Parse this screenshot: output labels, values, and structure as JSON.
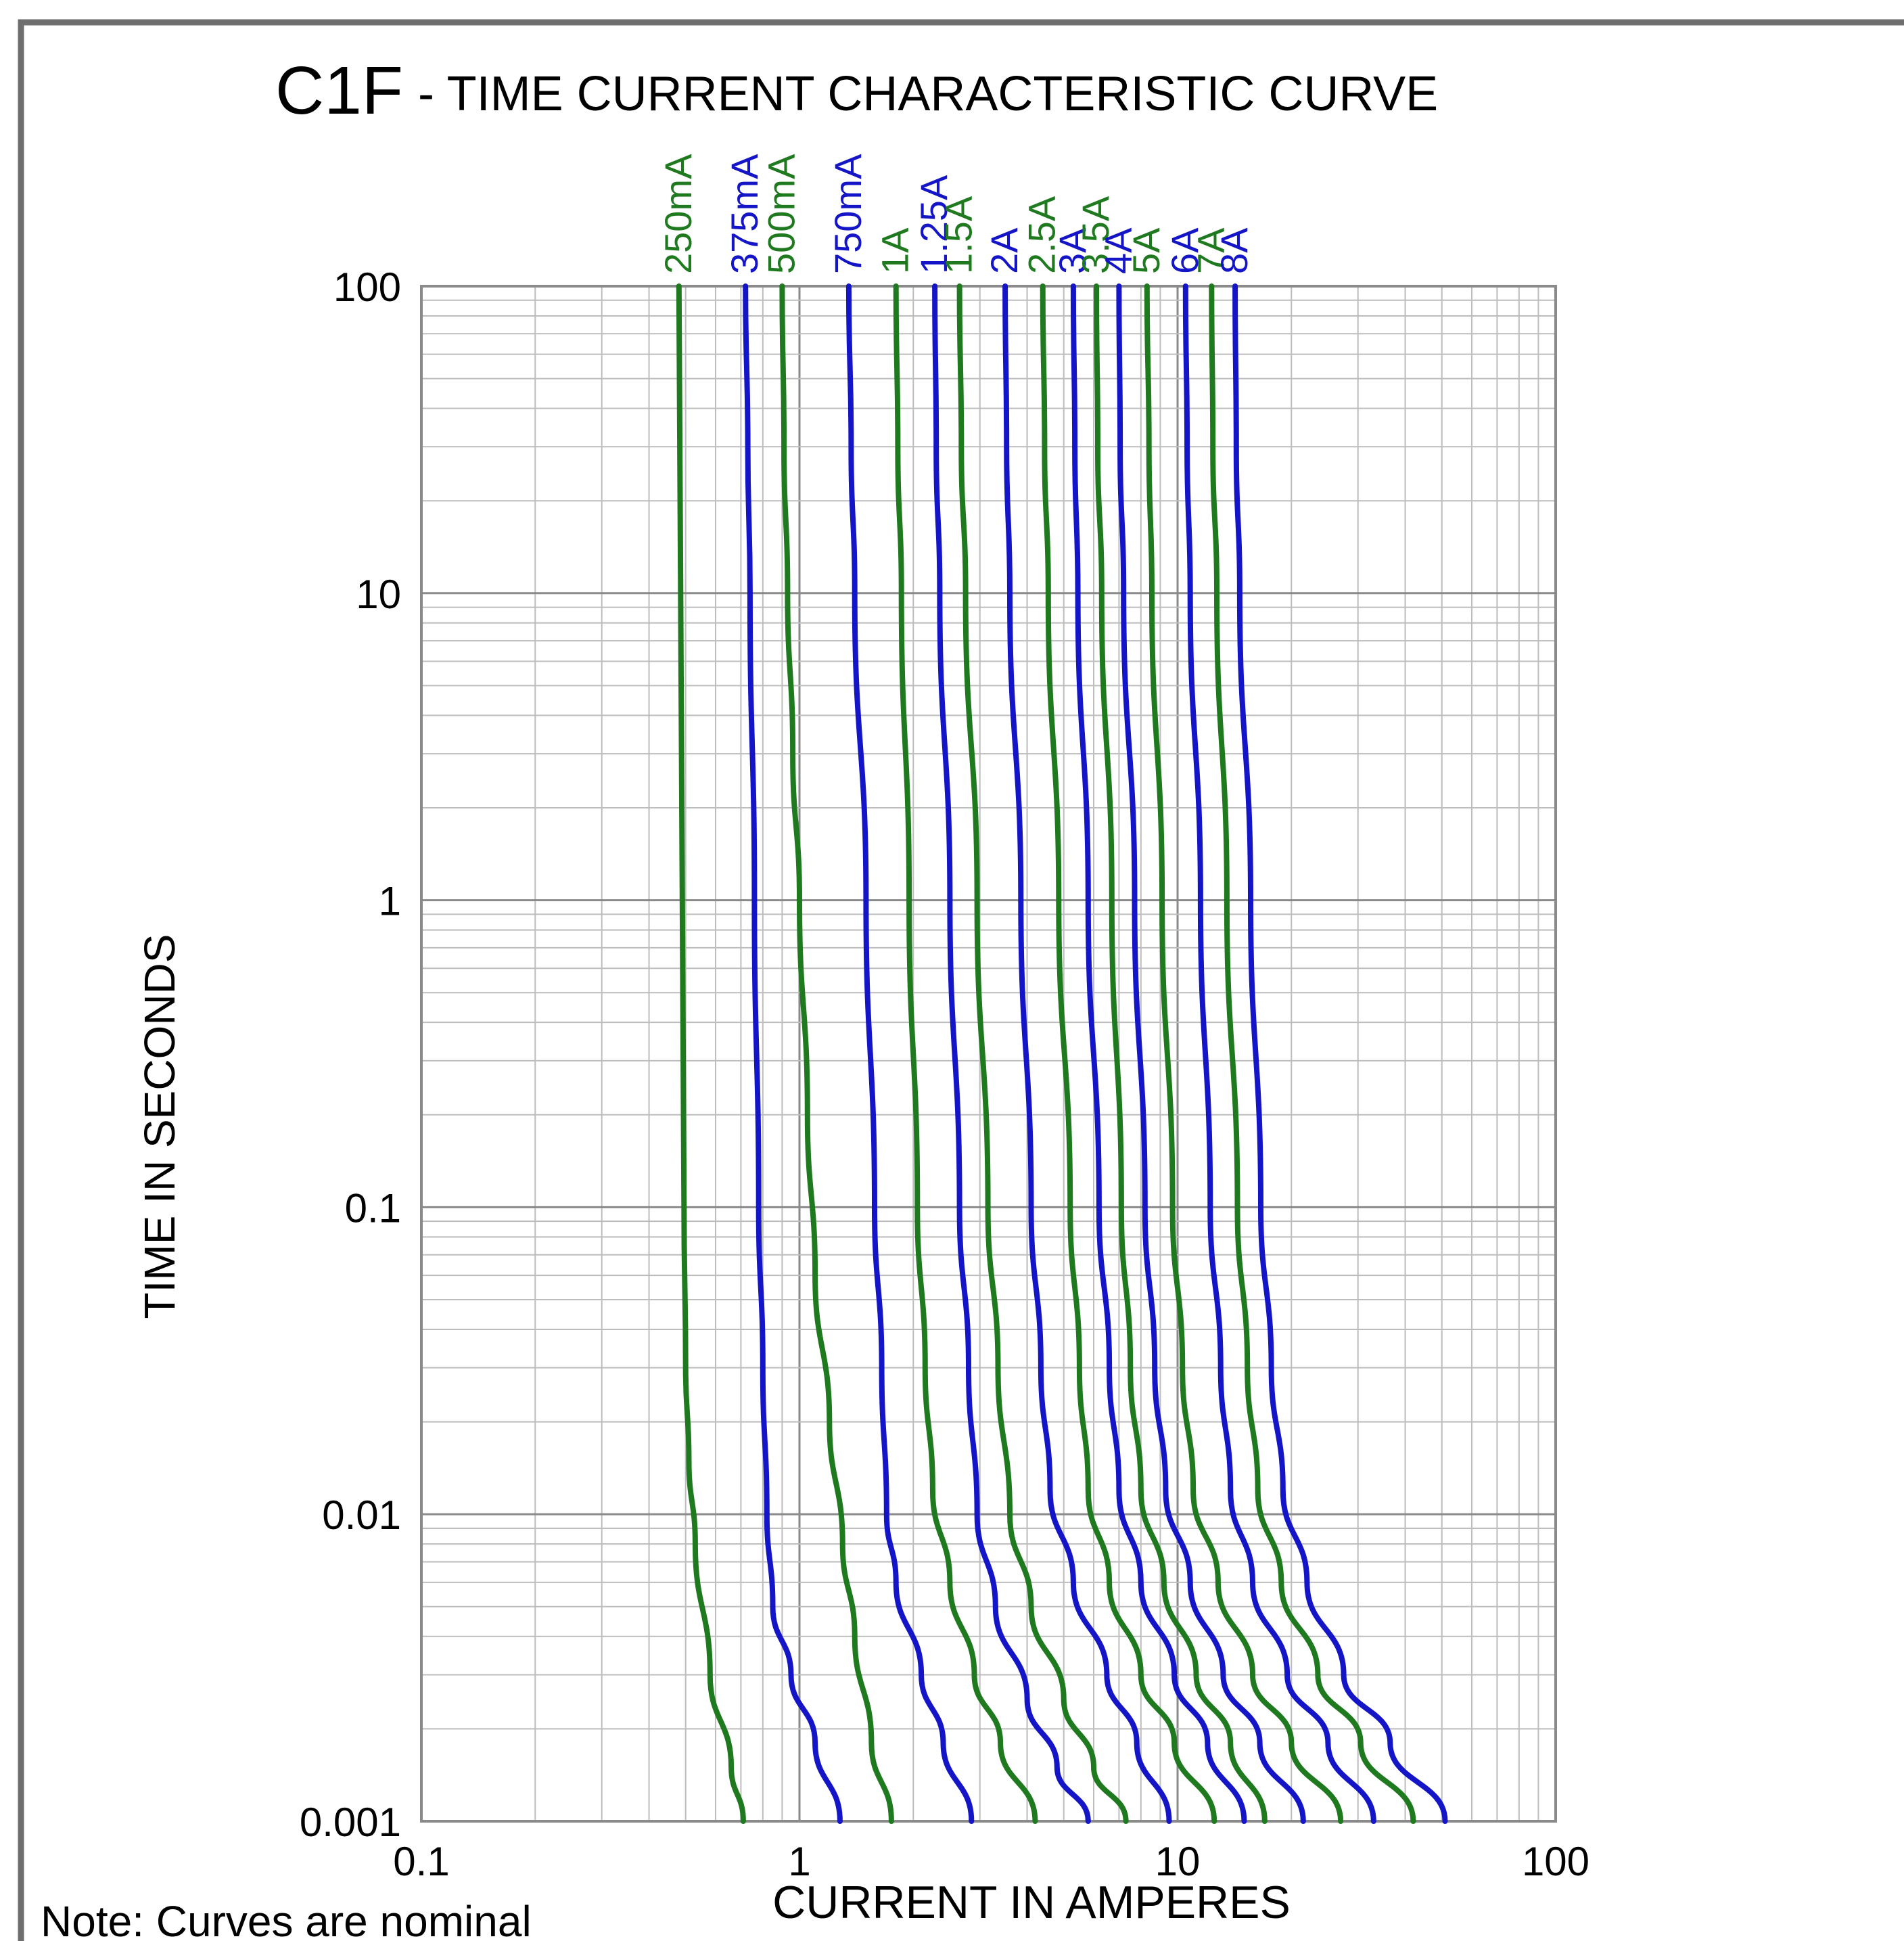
{
  "title": {
    "model": "C1F",
    "text": "- TIME CURRENT CHARACTERISTIC CURVE"
  },
  "note": "Note: Curves are nominal",
  "colors": {
    "green": "#1f7a1f",
    "blue": "#1515c8",
    "grid_minor": "#bdbdbd",
    "grid_major": "#8a8a8a",
    "frame": "#6e6e6e",
    "text": "#000000"
  },
  "chart_data": {
    "type": "line",
    "title": "C1F - TIME CURRENT CHARACTERISTIC CURVE",
    "xlabel": "CURRENT IN AMPERES",
    "ylabel": "TIME IN SECONDS",
    "x_scale": "log",
    "y_scale": "log",
    "xlim": [
      0.1,
      100
    ],
    "ylim": [
      0.001,
      100
    ],
    "x_ticks": [
      {
        "value": 0.1,
        "label": "0.1"
      },
      {
        "value": 1,
        "label": "1"
      },
      {
        "value": 10,
        "label": "10"
      },
      {
        "value": 100,
        "label": "100"
      }
    ],
    "y_ticks": [
      {
        "value": 100,
        "label": "100"
      },
      {
        "value": 10,
        "label": "10"
      },
      {
        "value": 1,
        "label": "1"
      },
      {
        "value": 0.1,
        "label": "0.1"
      },
      {
        "value": 0.01,
        "label": "0.01"
      },
      {
        "value": 0.001,
        "label": "0.001"
      }
    ],
    "grid": true,
    "legend": "rotated labels above each curve",
    "series": [
      {
        "name": "250mA",
        "color": "green",
        "points": [
          [
            0.48,
            100
          ],
          [
            0.485,
            10
          ],
          [
            0.49,
            1
          ],
          [
            0.495,
            0.1
          ],
          [
            0.5,
            0.03
          ],
          [
            0.51,
            0.015
          ],
          [
            0.53,
            0.008
          ],
          [
            0.58,
            0.003
          ],
          [
            0.66,
            0.0015
          ],
          [
            0.71,
            0.001
          ]
        ]
      },
      {
        "name": "375mA",
        "color": "blue",
        "points": [
          [
            0.72,
            100
          ],
          [
            0.73,
            30
          ],
          [
            0.74,
            10
          ],
          [
            0.76,
            1
          ],
          [
            0.78,
            0.1
          ],
          [
            0.8,
            0.03
          ],
          [
            0.82,
            0.01
          ],
          [
            0.85,
            0.005
          ],
          [
            0.95,
            0.003
          ],
          [
            1.1,
            0.0018
          ],
          [
            1.28,
            0.001
          ]
        ]
      },
      {
        "name": "500mA",
        "color": "green",
        "points": [
          [
            0.9,
            100
          ],
          [
            0.91,
            30
          ],
          [
            0.93,
            10
          ],
          [
            0.96,
            3
          ],
          [
            1.0,
            1
          ],
          [
            1.05,
            0.2
          ],
          [
            1.1,
            0.06
          ],
          [
            1.2,
            0.02
          ],
          [
            1.3,
            0.008
          ],
          [
            1.4,
            0.004
          ],
          [
            1.55,
            0.0018
          ],
          [
            1.75,
            0.001
          ]
        ]
      },
      {
        "name": "750mA",
        "color": "blue",
        "points": [
          [
            1.35,
            100
          ],
          [
            1.37,
            30
          ],
          [
            1.4,
            10
          ],
          [
            1.5,
            1
          ],
          [
            1.58,
            0.1
          ],
          [
            1.65,
            0.03
          ],
          [
            1.7,
            0.01
          ],
          [
            1.8,
            0.006
          ],
          [
            2.1,
            0.003
          ],
          [
            2.4,
            0.0018
          ],
          [
            2.85,
            0.001
          ]
        ]
      },
      {
        "name": "1A",
        "color": "green",
        "points": [
          [
            1.8,
            100
          ],
          [
            1.82,
            30
          ],
          [
            1.86,
            10
          ],
          [
            1.95,
            1
          ],
          [
            2.05,
            0.1
          ],
          [
            2.15,
            0.03
          ],
          [
            2.25,
            0.012
          ],
          [
            2.5,
            0.006
          ],
          [
            2.9,
            0.003
          ],
          [
            3.4,
            0.0018
          ],
          [
            4.2,
            0.001
          ]
        ]
      },
      {
        "name": "1.25A",
        "color": "blue",
        "points": [
          [
            2.28,
            100
          ],
          [
            2.3,
            30
          ],
          [
            2.35,
            10
          ],
          [
            2.5,
            1
          ],
          [
            2.65,
            0.1
          ],
          [
            2.8,
            0.03
          ],
          [
            2.95,
            0.01
          ],
          [
            3.3,
            0.005
          ],
          [
            4.0,
            0.0025
          ],
          [
            4.8,
            0.0015
          ],
          [
            5.8,
            0.001
          ]
        ]
      },
      {
        "name": "1.5A",
        "color": "green",
        "points": [
          [
            2.65,
            100
          ],
          [
            2.68,
            30
          ],
          [
            2.75,
            10
          ],
          [
            2.95,
            1
          ],
          [
            3.15,
            0.1
          ],
          [
            3.35,
            0.03
          ],
          [
            3.6,
            0.01
          ],
          [
            4.1,
            0.005
          ],
          [
            5.0,
            0.0025
          ],
          [
            6.0,
            0.0015
          ],
          [
            7.3,
            0.001
          ]
        ]
      },
      {
        "name": "2A",
        "color": "blue",
        "points": [
          [
            3.5,
            100
          ],
          [
            3.53,
            30
          ],
          [
            3.6,
            10
          ],
          [
            3.85,
            1
          ],
          [
            4.1,
            0.1
          ],
          [
            4.35,
            0.03
          ],
          [
            4.6,
            0.012
          ],
          [
            5.3,
            0.006
          ],
          [
            6.5,
            0.003
          ],
          [
            7.8,
            0.0018
          ],
          [
            9.5,
            0.001
          ]
        ]
      },
      {
        "name": "2.5A",
        "color": "green",
        "points": [
          [
            4.4,
            100
          ],
          [
            4.45,
            30
          ],
          [
            4.55,
            10
          ],
          [
            4.85,
            1
          ],
          [
            5.2,
            0.1
          ],
          [
            5.5,
            0.03
          ],
          [
            5.8,
            0.012
          ],
          [
            6.6,
            0.006
          ],
          [
            8.0,
            0.003
          ],
          [
            9.8,
            0.0018
          ],
          [
            12.5,
            0.001
          ]
        ]
      },
      {
        "name": "3A",
        "color": "blue",
        "points": [
          [
            5.3,
            100
          ],
          [
            5.35,
            30
          ],
          [
            5.45,
            10
          ],
          [
            5.8,
            1
          ],
          [
            6.2,
            0.1
          ],
          [
            6.6,
            0.03
          ],
          [
            7.0,
            0.012
          ],
          [
            8.0,
            0.006
          ],
          [
            9.8,
            0.003
          ],
          [
            12.0,
            0.0018
          ],
          [
            15.0,
            0.001
          ]
        ]
      },
      {
        "name": "3.5A",
        "color": "green",
        "points": [
          [
            6.1,
            100
          ],
          [
            6.15,
            30
          ],
          [
            6.3,
            10
          ],
          [
            6.7,
            1
          ],
          [
            7.1,
            0.1
          ],
          [
            7.5,
            0.03
          ],
          [
            8.0,
            0.012
          ],
          [
            9.2,
            0.006
          ],
          [
            11.2,
            0.003
          ],
          [
            13.8,
            0.0018
          ],
          [
            17.0,
            0.001
          ]
        ]
      },
      {
        "name": "4A",
        "color": "blue",
        "points": [
          [
            7.0,
            100
          ],
          [
            7.05,
            30
          ],
          [
            7.2,
            10
          ],
          [
            7.7,
            1
          ],
          [
            8.2,
            0.1
          ],
          [
            8.7,
            0.03
          ],
          [
            9.3,
            0.012
          ],
          [
            10.8,
            0.006
          ],
          [
            13.2,
            0.003
          ],
          [
            16.5,
            0.0018
          ],
          [
            21.5,
            0.001
          ]
        ]
      },
      {
        "name": "5A",
        "color": "green",
        "points": [
          [
            8.3,
            100
          ],
          [
            8.4,
            30
          ],
          [
            8.55,
            10
          ],
          [
            9.1,
            1
          ],
          [
            9.7,
            0.1
          ],
          [
            10.3,
            0.03
          ],
          [
            11.0,
            0.012
          ],
          [
            12.8,
            0.006
          ],
          [
            15.8,
            0.003
          ],
          [
            20.0,
            0.0018
          ],
          [
            27.0,
            0.001
          ]
        ]
      },
      {
        "name": "6A",
        "color": "blue",
        "points": [
          [
            10.5,
            100
          ],
          [
            10.6,
            30
          ],
          [
            10.8,
            10
          ],
          [
            11.5,
            1
          ],
          [
            12.2,
            0.1
          ],
          [
            13.0,
            0.03
          ],
          [
            13.8,
            0.012
          ],
          [
            15.8,
            0.006
          ],
          [
            19.5,
            0.003
          ],
          [
            25.0,
            0.0018
          ],
          [
            33.0,
            0.001
          ]
        ]
      },
      {
        "name": "7A",
        "color": "green",
        "points": [
          [
            12.3,
            100
          ],
          [
            12.4,
            30
          ],
          [
            12.7,
            10
          ],
          [
            13.5,
            1
          ],
          [
            14.4,
            0.1
          ],
          [
            15.3,
            0.03
          ],
          [
            16.3,
            0.012
          ],
          [
            18.8,
            0.006
          ],
          [
            23.5,
            0.003
          ],
          [
            30.5,
            0.0018
          ],
          [
            42.0,
            0.001
          ]
        ]
      },
      {
        "name": "8A",
        "color": "blue",
        "points": [
          [
            14.2,
            100
          ],
          [
            14.3,
            30
          ],
          [
            14.6,
            10
          ],
          [
            15.6,
            1
          ],
          [
            16.6,
            0.1
          ],
          [
            17.7,
            0.03
          ],
          [
            19.0,
            0.012
          ],
          [
            22.0,
            0.006
          ],
          [
            27.5,
            0.003
          ],
          [
            36.5,
            0.0018
          ],
          [
            51.0,
            0.001
          ]
        ]
      }
    ]
  }
}
